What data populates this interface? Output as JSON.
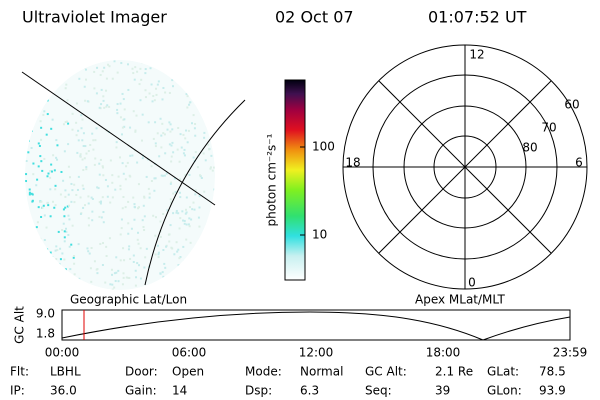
{
  "header": {
    "title": "Ultraviolet Imager",
    "date": "02 Oct 07",
    "time": "01:07:52 UT"
  },
  "colorbar": {
    "label": "photon cm⁻²s⁻¹",
    "ticks": [
      "100",
      "10"
    ]
  },
  "polar": {
    "mlt_labels": [
      "12",
      "18",
      "6",
      "0"
    ],
    "lat_labels": [
      "60",
      "70",
      "80"
    ]
  },
  "altitude_plot": {
    "left_title": "Geographic Lat/Lon",
    "right_title": "Apex MLat/MLT",
    "ylabel": "GC Alt",
    "yticks": [
      "9.0",
      "1.8"
    ],
    "xticks": [
      "00:00",
      "06:00",
      "12:00",
      "18:00",
      "23:59"
    ]
  },
  "footer": {
    "rows": [
      [
        {
          "label": "Flt:",
          "value": "LBHL"
        },
        {
          "label": "Door:",
          "value": "Open"
        },
        {
          "label": "Mode:",
          "value": "Normal"
        },
        {
          "label": "GC Alt:",
          "value": "2.1 Re"
        },
        {
          "label": "GLat:",
          "value": "78.5"
        }
      ],
      [
        {
          "label": "IP:",
          "value": "36.0"
        },
        {
          "label": "Gain:",
          "value": "14"
        },
        {
          "label": "Dsp:",
          "value": "6.3"
        },
        {
          "label": "Seq:",
          "value": "39"
        },
        {
          "label": "GLon:",
          "value": "93.9"
        }
      ]
    ]
  }
}
